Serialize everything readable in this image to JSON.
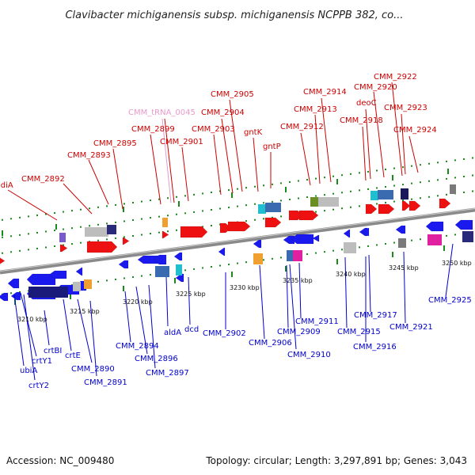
{
  "title": "Clavibacter michiganensis subsp. michiganensis NCPPB 382, co...",
  "footer": {
    "accession": "Accession: NC_009480",
    "topology": "Topology: circular; Length: 3,297,891 bp; Genes: 3,043"
  },
  "colors": {
    "forward_label": "#cc0000",
    "reverse_label": "#0000cc",
    "trna_label": "#e899c9",
    "forward_gene": "#ee1111",
    "reverse_gene": "#1a1aee",
    "track_line": "#888888",
    "tick_dot": "#1a8a1a"
  },
  "scale_labels": [
    "3210 kbp",
    "3215 kbp",
    "3220 kbp",
    "3225 kbp",
    "3230 kbp",
    "3235 kbp",
    "3240 kbp",
    "3245 kbp",
    "3250 kbp"
  ],
  "forward_labels": [
    "idiA",
    "CMM_2892",
    "CMM_2893",
    "CMM_2895",
    "CMM_2899",
    "CMM_tRNA_0045",
    "CMM_2901",
    "CMM_2903",
    "CMM_2904",
    "CMM_2905",
    "gntK",
    "gntP",
    "CMM_2912",
    "CMM_2913",
    "CMM_2914",
    "CMM_2918",
    "deoC",
    "CMM_2920",
    "CMM_2922",
    "CMM_2923",
    "CMM_2924"
  ],
  "reverse_labels": [
    "ubiA",
    "crtY1",
    "crtY2",
    "crtBI",
    "crtE",
    "CMM_2890",
    "CMM_2891",
    "CMM_2894",
    "CMM_2896",
    "CMM_2897",
    "aldA",
    "dcd",
    "CMM_2902",
    "CMM_2906",
    "CMM_2909",
    "CMM_2910",
    "CMM_2911",
    "CMM_2915",
    "CMM_2916",
    "CMM_2917",
    "CMM_2921",
    "CMM_2925"
  ]
}
